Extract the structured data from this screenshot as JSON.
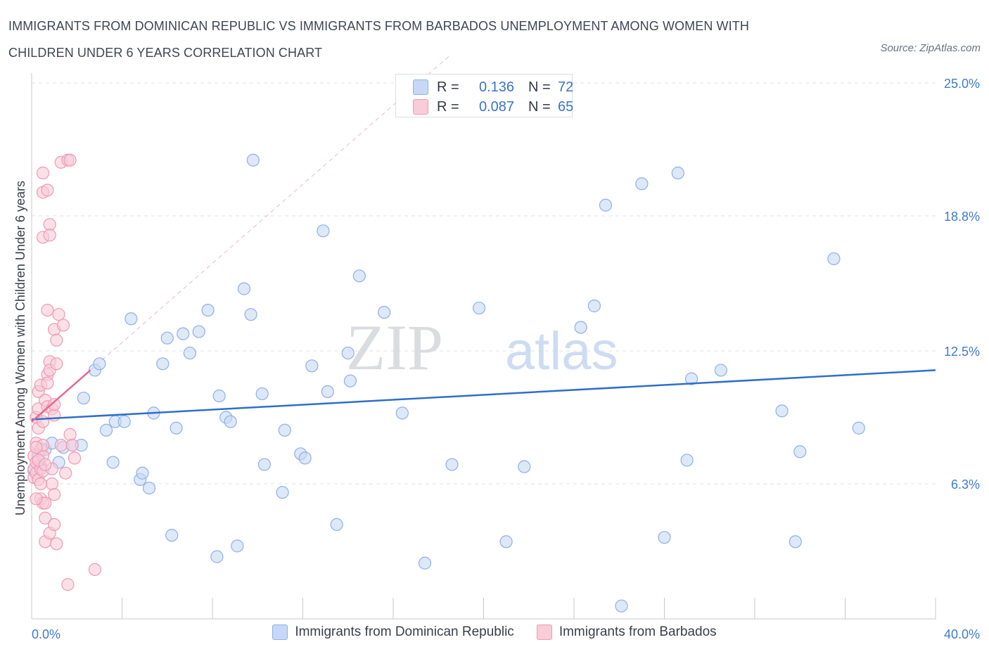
{
  "title": "IMMIGRANTS FROM DOMINICAN REPUBLIC VS IMMIGRANTS FROM BARBADOS UNEMPLOYMENT AMONG WOMEN WITH CHILDREN UNDER 6 YEARS CORRELATION CHART",
  "source": "Source: ZipAtlas.com",
  "watermark": {
    "zip": "ZIP",
    "atlas": "atlas"
  },
  "legend_box": {
    "rows": [
      {
        "r_label": "R =",
        "r_value": "0.136",
        "n_label": "N =",
        "n_value": "72"
      },
      {
        "r_label": "R =",
        "r_value": "0.087",
        "n_label": "N =",
        "n_value": "65"
      }
    ]
  },
  "colors": {
    "blue_fill": "#c6d8f5",
    "blue_stroke": "#8fb0e6",
    "blue_line": "#2f6fca",
    "pink_fill": "#f8ccd9",
    "pink_stroke": "#ee9ab3",
    "pink_line": "#e8678f",
    "tick_text": "#3f7bd0"
  },
  "chart_data": {
    "type": "scatter",
    "title": "IMMIGRANTS FROM DOMINICAN REPUBLIC VS IMMIGRANTS FROM BARBADOS UNEMPLOYMENT AMONG WOMEN WITH CHILDREN UNDER 6 YEARS CORRELATION CHART",
    "xlabel": "",
    "ylabel": "Unemployment Among Women with Children Under 6 years",
    "xlim": [
      0,
      40
    ],
    "ylim": [
      0,
      25
    ],
    "x_tick_labels": [
      {
        "value": 0,
        "label": "0.0%"
      },
      {
        "value": 40,
        "label": "40.0%"
      }
    ],
    "y_tick_labels": [
      {
        "value": 6.3,
        "label": "6.3%"
      },
      {
        "value": 12.5,
        "label": "12.5%"
      },
      {
        "value": 18.8,
        "label": "18.8%"
      },
      {
        "value": 25.0,
        "label": "25.0%"
      }
    ],
    "grid": true,
    "legend_position": "bottom",
    "series": [
      {
        "name": "Immigrants from Dominican Republic",
        "R": 0.136,
        "N": 72,
        "trend": [
          [
            0,
            9.3
          ],
          [
            40,
            11.6
          ]
        ],
        "points": [
          [
            0.3,
            7.6
          ],
          [
            0.6,
            7.9
          ],
          [
            0.9,
            8.2
          ],
          [
            1.2,
            7.3
          ],
          [
            1.4,
            8.0
          ],
          [
            1.8,
            8.1
          ],
          [
            2.2,
            8.1
          ],
          [
            2.3,
            10.3
          ],
          [
            2.8,
            11.6
          ],
          [
            3.0,
            11.9
          ],
          [
            3.3,
            8.8
          ],
          [
            3.6,
            7.3
          ],
          [
            3.7,
            9.2
          ],
          [
            4.1,
            9.2
          ],
          [
            4.4,
            14.0
          ],
          [
            4.8,
            6.5
          ],
          [
            4.9,
            6.8
          ],
          [
            5.2,
            6.1
          ],
          [
            5.4,
            9.6
          ],
          [
            5.8,
            11.9
          ],
          [
            6.0,
            13.1
          ],
          [
            6.2,
            3.9
          ],
          [
            6.4,
            8.9
          ],
          [
            6.7,
            13.3
          ],
          [
            7.0,
            12.4
          ],
          [
            7.4,
            13.4
          ],
          [
            7.8,
            14.4
          ],
          [
            8.2,
            2.9
          ],
          [
            8.3,
            10.4
          ],
          [
            8.6,
            9.4
          ],
          [
            8.8,
            9.2
          ],
          [
            9.1,
            3.4
          ],
          [
            9.4,
            15.4
          ],
          [
            9.7,
            14.2
          ],
          [
            9.8,
            21.4
          ],
          [
            10.2,
            10.5
          ],
          [
            10.3,
            7.2
          ],
          [
            11.1,
            5.9
          ],
          [
            11.2,
            8.8
          ],
          [
            11.9,
            7.7
          ],
          [
            12.1,
            7.5
          ],
          [
            12.4,
            11.8
          ],
          [
            12.9,
            18.1
          ],
          [
            13.1,
            10.6
          ],
          [
            13.5,
            4.4
          ],
          [
            14.0,
            12.4
          ],
          [
            14.1,
            11.1
          ],
          [
            14.5,
            16.0
          ],
          [
            15.6,
            14.3
          ],
          [
            16.4,
            9.6
          ],
          [
            17.4,
            2.6
          ],
          [
            18.6,
            7.2
          ],
          [
            19.8,
            14.5
          ],
          [
            21.0,
            3.6
          ],
          [
            21.8,
            7.1
          ],
          [
            24.3,
            13.6
          ],
          [
            24.9,
            14.6
          ],
          [
            25.4,
            19.3
          ],
          [
            26.1,
            0.6
          ],
          [
            27.0,
            20.3
          ],
          [
            28.0,
            3.8
          ],
          [
            28.6,
            20.8
          ],
          [
            29.0,
            7.4
          ],
          [
            29.2,
            11.2
          ],
          [
            30.5,
            11.6
          ],
          [
            33.2,
            9.7
          ],
          [
            33.8,
            3.6
          ],
          [
            34.0,
            7.8
          ],
          [
            35.5,
            16.8
          ],
          [
            36.6,
            8.9
          ],
          [
            0.1,
            6.9
          ],
          [
            0.4,
            7.1
          ]
        ]
      },
      {
        "name": "Immigrants from Barbados",
        "R": 0.087,
        "N": 65,
        "trend": [
          [
            0,
            9.2
          ],
          [
            2.6,
            11.6
          ]
        ],
        "points": [
          [
            0.1,
            6.6
          ],
          [
            0.1,
            7.0
          ],
          [
            0.1,
            7.6
          ],
          [
            0.2,
            8.2
          ],
          [
            0.2,
            9.4
          ],
          [
            0.2,
            6.8
          ],
          [
            0.2,
            7.3
          ],
          [
            0.3,
            9.8
          ],
          [
            0.3,
            10.6
          ],
          [
            0.3,
            8.9
          ],
          [
            0.3,
            6.5
          ],
          [
            0.4,
            5.6
          ],
          [
            0.4,
            7.0
          ],
          [
            0.4,
            7.9
          ],
          [
            0.4,
            10.9
          ],
          [
            0.5,
            5.4
          ],
          [
            0.5,
            6.9
          ],
          [
            0.5,
            7.6
          ],
          [
            0.5,
            8.1
          ],
          [
            0.5,
            9.2
          ],
          [
            0.5,
            19.9
          ],
          [
            0.5,
            20.8
          ],
          [
            0.5,
            17.8
          ],
          [
            0.6,
            4.7
          ],
          [
            0.6,
            5.4
          ],
          [
            0.6,
            10.2
          ],
          [
            0.6,
            3.6
          ],
          [
            0.7,
            9.9
          ],
          [
            0.7,
            11.4
          ],
          [
            0.7,
            14.4
          ],
          [
            0.7,
            20.0
          ],
          [
            0.7,
            11.0
          ],
          [
            0.8,
            4.0
          ],
          [
            0.8,
            12.0
          ],
          [
            0.8,
            11.6
          ],
          [
            0.8,
            18.4
          ],
          [
            0.8,
            17.9
          ],
          [
            0.9,
            7.0
          ],
          [
            0.9,
            6.3
          ],
          [
            0.9,
            9.8
          ],
          [
            1.0,
            4.4
          ],
          [
            1.0,
            5.8
          ],
          [
            1.0,
            9.5
          ],
          [
            1.0,
            10.0
          ],
          [
            1.0,
            13.5
          ],
          [
            1.1,
            3.5
          ],
          [
            1.1,
            13.0
          ],
          [
            1.1,
            11.9
          ],
          [
            1.2,
            14.2
          ],
          [
            1.3,
            21.3
          ],
          [
            1.3,
            8.1
          ],
          [
            1.4,
            13.7
          ],
          [
            1.5,
            6.8
          ],
          [
            1.6,
            21.4
          ],
          [
            1.6,
            1.6
          ],
          [
            1.7,
            8.6
          ],
          [
            1.7,
            21.4
          ],
          [
            1.8,
            8.1
          ],
          [
            1.9,
            7.5
          ],
          [
            2.8,
            2.3
          ],
          [
            0.2,
            8.0
          ],
          [
            0.3,
            7.4
          ],
          [
            0.4,
            6.3
          ],
          [
            0.6,
            7.2
          ],
          [
            0.2,
            5.6
          ]
        ]
      }
    ]
  },
  "bottom_legend": {
    "items": [
      {
        "label": "Immigrants from Dominican Republic"
      },
      {
        "label": "Immigrants from Barbados"
      }
    ]
  }
}
